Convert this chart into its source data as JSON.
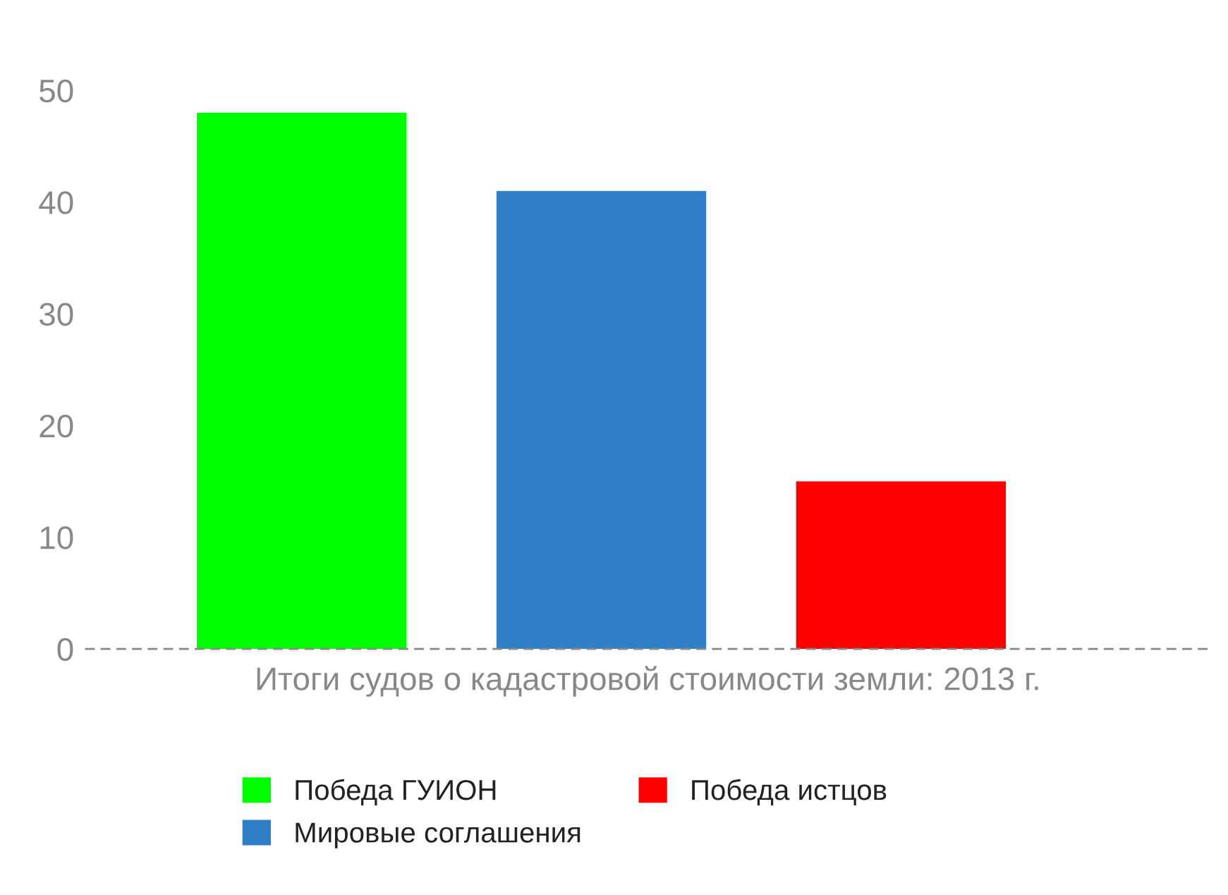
{
  "chart_data": {
    "type": "bar",
    "xlabel": "Итоги судов о кадастровой стоимости земли: 2013 г.",
    "categories": [
      null
    ],
    "series": [
      {
        "name": "Победа ГУИОН",
        "color": "#00ff00",
        "values": [
          48
        ]
      },
      {
        "name": "Мировые соглашения",
        "color": "#2f7fc6",
        "values": [
          41
        ]
      },
      {
        "name": "Победа истцов",
        "color": "#ff0000",
        "values": [
          15
        ]
      }
    ],
    "ylim": [
      0,
      50
    ],
    "yticks": [
      0,
      10,
      20,
      30,
      40,
      50
    ],
    "grid": false,
    "legend": "bottom"
  }
}
